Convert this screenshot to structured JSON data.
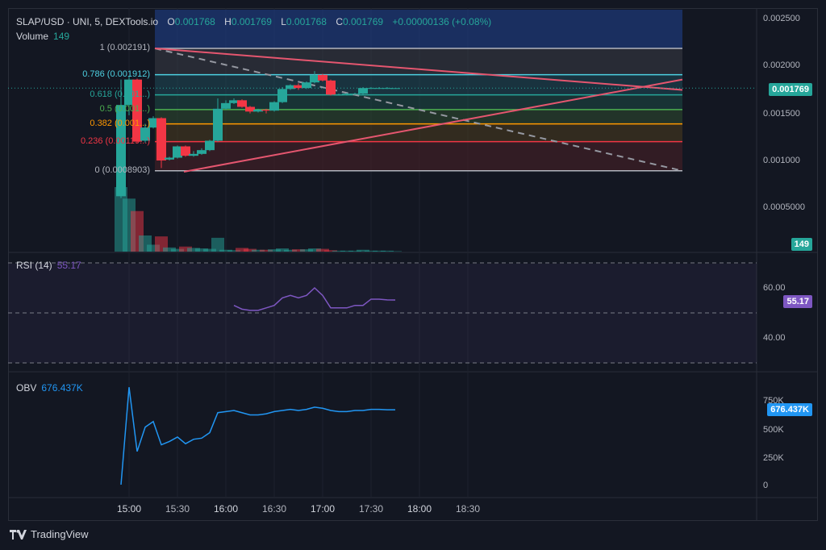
{
  "header": {
    "symbol": "SLAP/USD · UNI, 5, DEXTools.io",
    "o_label": "O",
    "o": "0.001768",
    "h_label": "H",
    "h": "0.001769",
    "l_label": "L",
    "l": "0.001768",
    "c_label": "C",
    "c": "0.001769",
    "change": "+0.00000136 (+0.08%)",
    "volume_label": "Volume",
    "volume": "149"
  },
  "fib_labels": [
    {
      "text": "1 (0.002191)",
      "color": "#b2b5be"
    },
    {
      "text": "0.786 (0.001912)",
      "color": "#4dd0e1"
    },
    {
      "text": "0.618 (0.001...)",
      "color": "#26a69a"
    },
    {
      "text": "0.5 (0.001...)",
      "color": "#4caf50"
    },
    {
      "text": "0.382 (0.001...)",
      "color": "#ff9800"
    },
    {
      "text": "0.236 (0.00119...)",
      "color": "#f23645"
    },
    {
      "text": "0 (0.0008903)",
      "color": "#b2b5be"
    }
  ],
  "price_axis": [
    "0.002500",
    "0.002000",
    "0.001500",
    "0.001000",
    "0.0005000"
  ],
  "price_tag": "0.001769",
  "volume_tag": "149",
  "rsi": {
    "label": "RSI (14)",
    "value": "55.17",
    "axis": [
      "60.00",
      "40.00"
    ]
  },
  "obv": {
    "label": "OBV",
    "value": "676.437K",
    "axis": [
      "750K",
      "500K",
      "250K",
      "0"
    ]
  },
  "time_axis": [
    "15:00",
    "15:30",
    "16:00",
    "16:30",
    "17:00",
    "17:30",
    "18:00",
    "18:30"
  ],
  "brand": "TradingView",
  "colors": {
    "up": "#26a69a",
    "down": "#f23645",
    "rsi": "#7e57c2",
    "obv": "#2196f3",
    "bg": "#131722"
  },
  "chart_data": [
    {
      "type": "candlestick",
      "title": "SLAP/USD · UNI, 5, DEXTools.io",
      "ylim": [
        0,
        0.0026
      ],
      "candles": [
        {
          "t": "14:55",
          "o": 0.00062,
          "h": 0.00186,
          "l": 0.0006,
          "c": 0.00159
        },
        {
          "t": "15:00",
          "o": 0.00159,
          "h": 0.0019,
          "l": 0.00148,
          "c": 0.00186
        },
        {
          "t": "15:05",
          "o": 0.00186,
          "h": 0.00187,
          "l": 0.00119,
          "c": 0.0012
        },
        {
          "t": "15:10",
          "o": 0.00121,
          "h": 0.00139,
          "l": 0.00119,
          "c": 0.00135
        },
        {
          "t": "15:15",
          "o": 0.00135,
          "h": 0.00147,
          "l": 0.00134,
          "c": 0.00145
        },
        {
          "t": "15:20",
          "o": 0.00145,
          "h": 0.00146,
          "l": 0.00092,
          "c": 0.001
        },
        {
          "t": "15:25",
          "o": 0.00101,
          "h": 0.00104,
          "l": 0.001,
          "c": 0.00103
        },
        {
          "t": "15:30",
          "o": 0.00103,
          "h": 0.00116,
          "l": 0.00102,
          "c": 0.00115
        },
        {
          "t": "15:35",
          "o": 0.00115,
          "h": 0.00116,
          "l": 0.00104,
          "c": 0.00105
        },
        {
          "t": "15:40",
          "o": 0.00105,
          "h": 0.0011,
          "l": 0.00104,
          "c": 0.00107
        },
        {
          "t": "15:45",
          "o": 0.00107,
          "h": 0.00113,
          "l": 0.00106,
          "c": 0.00111
        },
        {
          "t": "15:50",
          "o": 0.00111,
          "h": 0.00122,
          "l": 0.0011,
          "c": 0.00121
        },
        {
          "t": "15:55",
          "o": 0.00121,
          "h": 0.00166,
          "l": 0.0012,
          "c": 0.00155
        },
        {
          "t": "16:00",
          "o": 0.00155,
          "h": 0.00164,
          "l": 0.00154,
          "c": 0.00161
        },
        {
          "t": "16:05",
          "o": 0.00161,
          "h": 0.00166,
          "l": 0.0016,
          "c": 0.00164
        },
        {
          "t": "16:10",
          "o": 0.00164,
          "h": 0.00165,
          "l": 0.00156,
          "c": 0.00157
        },
        {
          "t": "16:15",
          "o": 0.00157,
          "h": 0.00158,
          "l": 0.0015,
          "c": 0.00152
        },
        {
          "t": "16:20",
          "o": 0.00152,
          "h": 0.00155,
          "l": 0.00151,
          "c": 0.00154
        },
        {
          "t": "16:25",
          "o": 0.00154,
          "h": 0.00155,
          "l": 0.0015,
          "c": 0.00153
        },
        {
          "t": "16:30",
          "o": 0.00153,
          "h": 0.00163,
          "l": 0.00152,
          "c": 0.00162
        },
        {
          "t": "16:35",
          "o": 0.00162,
          "h": 0.00178,
          "l": 0.00161,
          "c": 0.00176
        },
        {
          "t": "16:40",
          "o": 0.00176,
          "h": 0.00181,
          "l": 0.00175,
          "c": 0.0018
        },
        {
          "t": "16:45",
          "o": 0.0018,
          "h": 0.00182,
          "l": 0.00175,
          "c": 0.00177
        },
        {
          "t": "16:50",
          "o": 0.00177,
          "h": 0.00184,
          "l": 0.00176,
          "c": 0.00183
        },
        {
          "t": "16:55",
          "o": 0.00183,
          "h": 0.00195,
          "l": 0.00182,
          "c": 0.00191
        },
        {
          "t": "17:00",
          "o": 0.00191,
          "h": 0.00192,
          "l": 0.00184,
          "c": 0.00185
        },
        {
          "t": "17:05",
          "o": 0.00185,
          "h": 0.00186,
          "l": 0.00169,
          "c": 0.0017
        },
        {
          "t": "17:10",
          "o": 0.0017,
          "h": 0.00171,
          "l": 0.00169,
          "c": 0.0017
        },
        {
          "t": "17:15",
          "o": 0.0017,
          "h": 0.00172,
          "l": 0.00169,
          "c": 0.00171
        },
        {
          "t": "17:20",
          "o": 0.00171,
          "h": 0.00172,
          "l": 0.0017,
          "c": 0.00171
        },
        {
          "t": "17:25",
          "o": 0.00171,
          "h": 0.00178,
          "l": 0.0017,
          "c": 0.00177
        },
        {
          "t": "17:30",
          "o": 0.00177,
          "h": 0.00178,
          "l": 0.00176,
          "c": 0.00177
        },
        {
          "t": "17:35",
          "o": 0.00177,
          "h": 0.00178,
          "l": 0.00176,
          "c": 0.00177
        },
        {
          "t": "17:40",
          "o": 0.00177,
          "h": 0.00178,
          "l": 0.00176,
          "c": 0.00177
        },
        {
          "t": "17:45",
          "o": 0.001768,
          "h": 0.001769,
          "l": 0.001768,
          "c": 0.001769
        }
      ],
      "volume": [
        1400,
        1150,
        880,
        350,
        150,
        330,
        90,
        60,
        110,
        80,
        70,
        60,
        300,
        40,
        30,
        80,
        60,
        40,
        40,
        50,
        70,
        40,
        50,
        50,
        70,
        60,
        30,
        20,
        20,
        20,
        40,
        20,
        20,
        20,
        10
      ],
      "fib_levels": [
        1,
        0.786,
        0.618,
        0.5,
        0.382,
        0.236,
        0
      ],
      "fib_prices": [
        0.002191,
        0.001912,
        0.001697,
        0.001541,
        0.001389,
        0.0012,
        0.0008903
      ]
    },
    {
      "type": "line",
      "title": "RSI (14)",
      "ylim": [
        30,
        75
      ],
      "x": [
        "16:05",
        "16:10",
        "16:15",
        "16:20",
        "16:25",
        "16:30",
        "16:35",
        "16:40",
        "16:45",
        "16:50",
        "16:55",
        "17:00",
        "17:05",
        "17:10",
        "17:15",
        "17:20",
        "17:25",
        "17:30",
        "17:35",
        "17:40",
        "17:45"
      ],
      "values": [
        53,
        51.5,
        51,
        51,
        52,
        53,
        56,
        57,
        56,
        57,
        60,
        57,
        52,
        52,
        52,
        53,
        53,
        55.5,
        55.5,
        55.2,
        55.17
      ]
    },
    {
      "type": "line",
      "title": "OBV",
      "ylim": [
        0,
        900000
      ],
      "x": [
        "14:55",
        "15:00",
        "15:05",
        "15:10",
        "15:15",
        "15:20",
        "15:25",
        "15:30",
        "15:35",
        "15:40",
        "15:45",
        "15:50",
        "15:55",
        "16:00",
        "16:05",
        "16:10",
        "16:15",
        "16:20",
        "16:25",
        "16:30",
        "16:35",
        "16:40",
        "16:45",
        "16:50",
        "16:55",
        "17:00",
        "17:05",
        "17:10",
        "17:15",
        "17:20",
        "17:25",
        "17:30",
        "17:35",
        "17:40",
        "17:45"
      ],
      "values": [
        0,
        880000,
        300000,
        520000,
        570000,
        360000,
        390000,
        430000,
        370000,
        410000,
        420000,
        470000,
        650000,
        660000,
        670000,
        650000,
        630000,
        630000,
        640000,
        660000,
        670000,
        680000,
        670000,
        680000,
        700000,
        690000,
        670000,
        660000,
        660000,
        670000,
        670000,
        680000,
        680000,
        676000,
        676437
      ]
    }
  ]
}
